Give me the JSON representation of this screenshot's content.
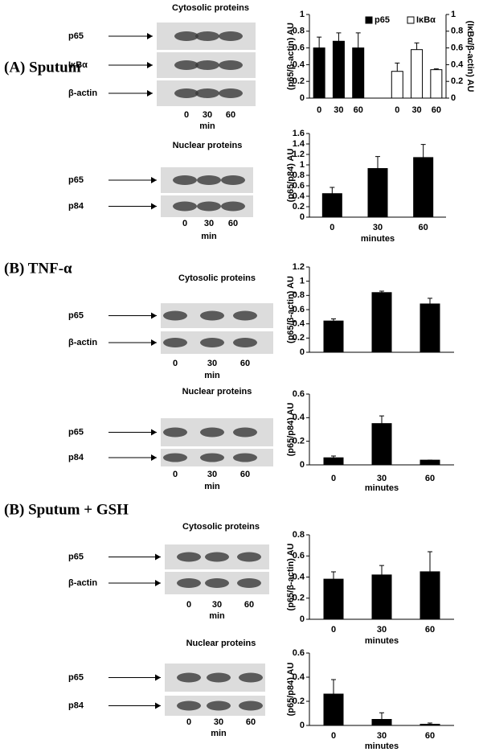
{
  "panels": [
    {
      "label": "(A) Sputum"
    },
    {
      "label": "(B) TNF-α"
    },
    {
      "label": "(B) Sputum + GSH"
    }
  ],
  "blots": [
    {
      "title": "Cytosolic proteins",
      "bands": [
        "p65",
        "IκBα",
        "β-actin"
      ],
      "lanes": [
        "0",
        "30",
        "60"
      ],
      "unit": "min"
    },
    {
      "title": "Nuclear proteins",
      "bands": [
        "p65",
        "p84"
      ],
      "lanes": [
        "0",
        "30",
        "60"
      ],
      "unit": "min"
    },
    {
      "title": "Cytosolic proteins",
      "bands": [
        "p65",
        "β-actin"
      ],
      "lanes": [
        "0",
        "30",
        "60"
      ],
      "unit": "min"
    },
    {
      "title": "Nuclear proteins",
      "bands": [
        "p65",
        "p84"
      ],
      "lanes": [
        "0",
        "30",
        "60"
      ],
      "unit": "min"
    },
    {
      "title": "Cytosolic proteins",
      "bands": [
        "p65",
        "β-actin"
      ],
      "lanes": [
        "0",
        "30",
        "60"
      ],
      "unit": "min"
    },
    {
      "title": "Nuclear proteins",
      "bands": [
        "p65",
        "p84"
      ],
      "lanes": [
        "0",
        "30",
        "60"
      ],
      "unit": "min"
    }
  ],
  "chart_data": [
    {
      "type": "bar",
      "ylabel": "(p65/β-actin) AU",
      "y2label": "(IκBα/β-actin) AU",
      "categories": [
        "0",
        "30",
        "60",
        "0",
        "30",
        "60"
      ],
      "series": [
        {
          "name": "p65",
          "color": "#000000",
          "values": [
            0.6,
            0.68,
            0.6,
            null,
            null,
            null
          ],
          "errors": [
            0.13,
            0.1,
            0.18,
            null,
            null,
            null
          ]
        },
        {
          "name": "IκBα",
          "color": "#ffffff",
          "axis": "y2",
          "values": [
            null,
            null,
            null,
            0.32,
            0.58,
            0.34
          ],
          "errors": [
            null,
            null,
            null,
            0.1,
            0.08,
            0.01
          ]
        }
      ],
      "ylim": [
        0,
        1
      ],
      "yticks": [
        0,
        0.2,
        0.4,
        0.6,
        0.8,
        1
      ],
      "y2lim": [
        0,
        1
      ],
      "y2ticks": [
        0,
        0.2,
        0.4,
        0.6,
        0.8,
        1
      ]
    },
    {
      "type": "bar",
      "ylabel": "(p65/p84) AU",
      "xlabel": "minutes",
      "categories": [
        "0",
        "30",
        "60"
      ],
      "series": [
        {
          "color": "#000000",
          "values": [
            0.45,
            0.93,
            1.14
          ],
          "errors": [
            0.12,
            0.23,
            0.25
          ]
        }
      ],
      "ylim": [
        0,
        1.6
      ],
      "yticks": [
        0,
        0.2,
        0.4,
        0.6,
        0.8,
        1,
        1.2,
        1.4,
        1.6
      ]
    },
    {
      "type": "bar",
      "ylabel": "(p65/β-actin) AU",
      "categories": [
        null,
        null,
        null
      ],
      "series": [
        {
          "color": "#000000",
          "values": [
            0.44,
            0.84,
            0.68
          ],
          "errors": [
            0.03,
            0.02,
            0.08
          ]
        }
      ],
      "ylim": [
        0,
        1.2
      ],
      "yticks": [
        0,
        0.2,
        0.4,
        0.6,
        0.8,
        1,
        1.2
      ]
    },
    {
      "type": "bar",
      "ylabel": "(p65/p84) AU",
      "xlabel": "minutes",
      "categories": [
        "0",
        "30",
        "60"
      ],
      "series": [
        {
          "color": "#000000",
          "values": [
            0.06,
            0.35,
            0.04
          ],
          "errors": [
            0.015,
            0.065,
            0
          ]
        }
      ],
      "ylim": [
        0,
        0.6
      ],
      "yticks": [
        0,
        0.2,
        0.4,
        0.6
      ]
    },
    {
      "type": "bar",
      "ylabel": "(p65/β-actin) AU",
      "xlabel": "minutes",
      "categories": [
        "0",
        "30",
        "60"
      ],
      "series": [
        {
          "color": "#000000",
          "values": [
            0.38,
            0.42,
            0.45
          ],
          "errors": [
            0.07,
            0.09,
            0.19
          ]
        }
      ],
      "ylim": [
        0,
        0.8
      ],
      "yticks": [
        0,
        0.2,
        0.4,
        0.6,
        0.8
      ]
    },
    {
      "type": "bar",
      "ylabel": "(p65/p84) AU",
      "xlabel": "minutes",
      "categories": [
        "0",
        "30",
        "60"
      ],
      "series": [
        {
          "color": "#000000",
          "values": [
            0.26,
            0.05,
            0.01
          ],
          "errors": [
            0.12,
            0.055,
            0.01
          ]
        }
      ],
      "ylim": [
        0,
        0.6
      ],
      "yticks": [
        0,
        0.2,
        0.4,
        0.6
      ]
    }
  ]
}
